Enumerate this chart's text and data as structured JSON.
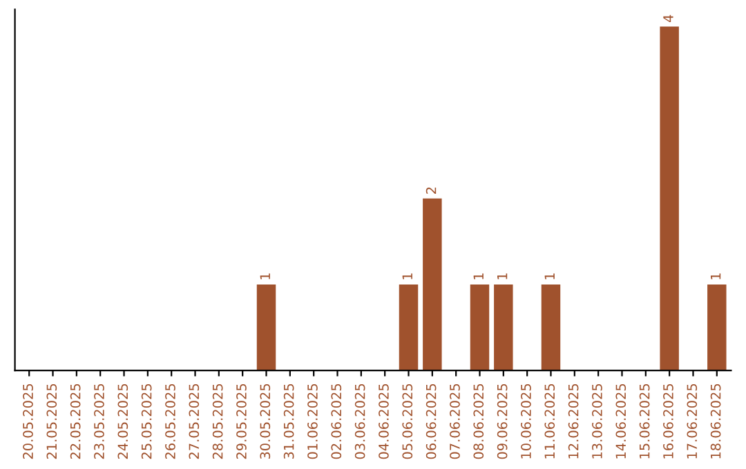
{
  "chart_data": {
    "type": "bar",
    "categories": [
      "20.05.2025",
      "21.05.2025",
      "22.05.2025",
      "23.05.2025",
      "24.05.2025",
      "25.05.2025",
      "26.05.2025",
      "27.05.2025",
      "28.05.2025",
      "29.05.2025",
      "30.05.2025",
      "31.05.2025",
      "01.06.2025",
      "02.06.2025",
      "03.06.2025",
      "04.06.2025",
      "05.06.2025",
      "06.06.2025",
      "07.06.2025",
      "08.06.2025",
      "09.06.2025",
      "10.06.2025",
      "11.06.2025",
      "12.06.2025",
      "13.06.2025",
      "14.06.2025",
      "15.06.2025",
      "16.06.2025",
      "17.06.2025",
      "18.06.2025"
    ],
    "values": [
      0,
      0,
      0,
      0,
      0,
      0,
      0,
      0,
      0,
      0,
      1,
      0,
      0,
      0,
      0,
      0,
      1,
      2,
      0,
      1,
      1,
      0,
      1,
      0,
      0,
      0,
      0,
      4,
      0,
      1
    ],
    "value_labels": [
      null,
      null,
      null,
      null,
      null,
      null,
      null,
      null,
      null,
      null,
      "1",
      null,
      null,
      null,
      null,
      null,
      "1",
      "2",
      null,
      "1",
      "1",
      null,
      "1",
      null,
      null,
      null,
      null,
      "4",
      null,
      "1"
    ],
    "color": "#a0522d",
    "grid": false,
    "legend": false
  }
}
